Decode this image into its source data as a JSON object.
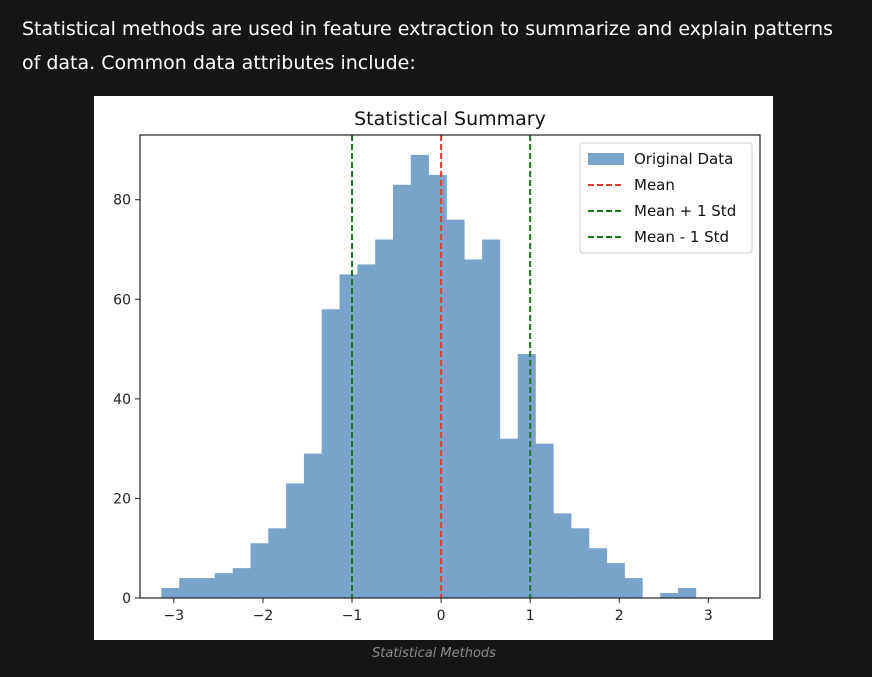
{
  "intro_text": "Statistical methods are used in feature extraction to summarize and explain patterns of data. Common data attributes include:",
  "caption": "Statistical Methods",
  "colors": {
    "bar": "#7aa3cc",
    "mean_line": "#e8392a",
    "std_line": "#1a7a1a",
    "page_background": "#161616",
    "figure_background": "#ffffff"
  },
  "chart_data": {
    "type": "bar",
    "title": "Statistical Summary",
    "xlabel": "",
    "ylabel": "",
    "xlim": [
      -3.38,
      3.58
    ],
    "ylim": [
      0,
      93
    ],
    "x_ticks": [
      -3,
      -2,
      -1,
      0,
      1,
      2,
      3
    ],
    "x_tick_labels": [
      "−3",
      "−2",
      "−1",
      "0",
      "1",
      "2",
      "3"
    ],
    "y_ticks": [
      0,
      20,
      40,
      60,
      80
    ],
    "y_tick_labels": [
      "0",
      "20",
      "40",
      "60",
      "80"
    ],
    "bin_start": -3.14,
    "bin_width": 0.2,
    "values": [
      2,
      4,
      4,
      5,
      6,
      11,
      14,
      23,
      29,
      58,
      65,
      67,
      72,
      83,
      89,
      85,
      76,
      68,
      72,
      32,
      49,
      31,
      17,
      14,
      10,
      7,
      4,
      0,
      1,
      2
    ],
    "mean": 0.0,
    "mean_plus_std": 1.0,
    "mean_minus_std": -1.0,
    "legend_position": "top-right",
    "legend": [
      {
        "label": "Original Data",
        "style": "patch",
        "color": "#7aa3cc"
      },
      {
        "label": "Mean",
        "style": "dashed",
        "color": "#e8392a"
      },
      {
        "label": "Mean + 1 Std",
        "style": "dashed",
        "color": "#1a7a1a"
      },
      {
        "label": "Mean - 1 Std",
        "style": "dashed",
        "color": "#1a7a1a"
      }
    ]
  }
}
